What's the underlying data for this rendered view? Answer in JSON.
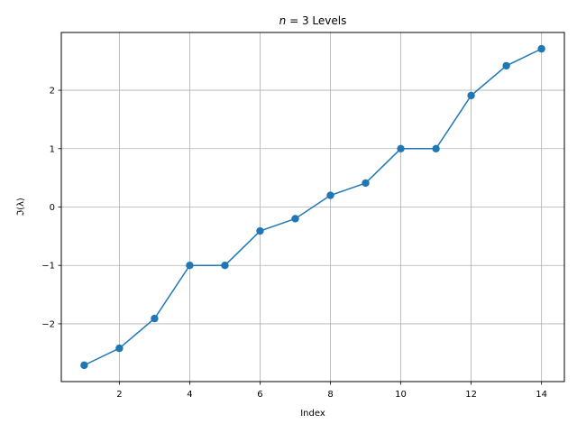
{
  "chart_data": {
    "type": "line",
    "title": "n = 3 Levels",
    "title_parts": {
      "italic": "n",
      "rest": " = 3 Levels"
    },
    "xlabel": "Index",
    "ylabel": "ℑ(λ)",
    "xlim": [
      0.35,
      14.65
    ],
    "ylim": [
      -2.99,
      2.99
    ],
    "xticks": [
      2,
      4,
      6,
      8,
      10,
      12,
      14
    ],
    "yticks": [
      -2,
      -1,
      0,
      1,
      2
    ],
    "grid": true,
    "colors": {
      "line": "#1f77b4",
      "grid": "#b0b0b0",
      "axes": "#000000"
    },
    "series": [
      {
        "x": [
          1,
          2,
          3,
          4,
          5,
          6,
          7,
          8,
          9,
          10,
          11,
          12,
          13,
          14
        ],
        "y": [
          -2.71,
          -2.42,
          -1.91,
          -1.0,
          -1.0,
          -0.41,
          -0.2,
          0.2,
          0.41,
          1.0,
          1.0,
          1.91,
          2.42,
          2.71
        ]
      }
    ]
  }
}
